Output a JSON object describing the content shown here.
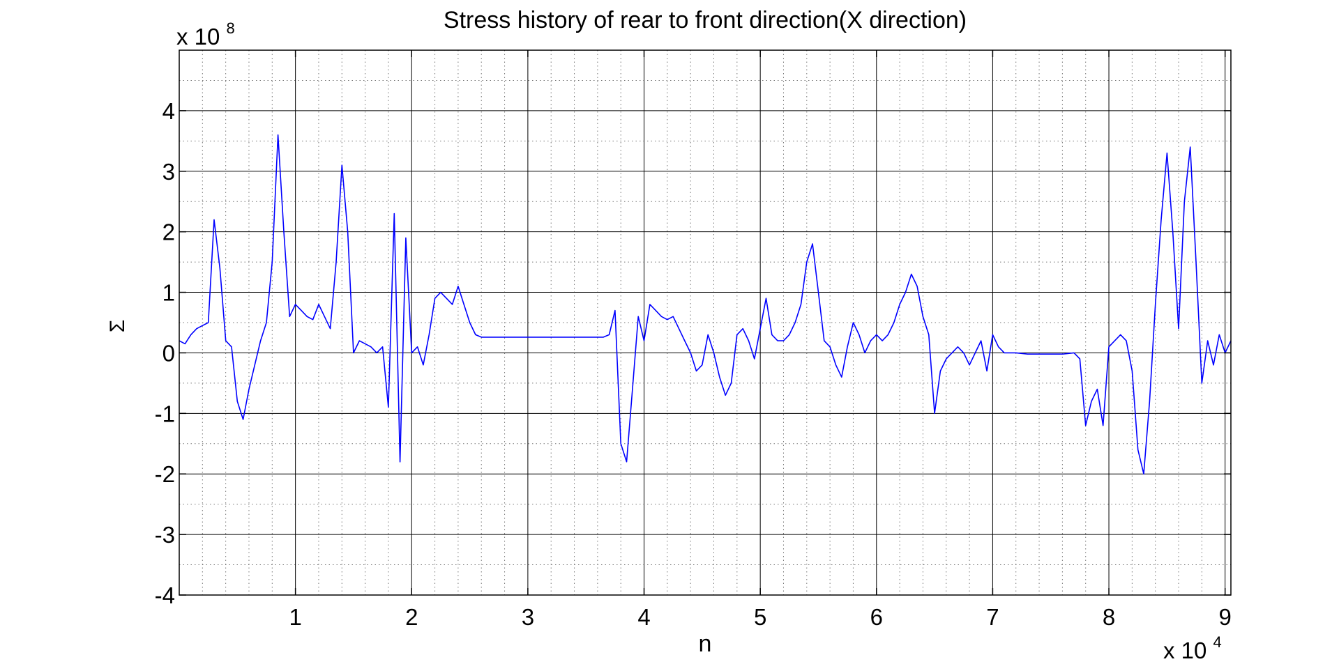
{
  "chart_data": {
    "type": "line",
    "title": "Stress history of rear to front direction(X direction)",
    "xlabel": "n",
    "ylabel": "Σ",
    "x_multiplier_base": "x 10",
    "x_multiplier_exp": "4",
    "y_multiplier_base": "x 10",
    "y_multiplier_exp": "8",
    "xlim": [
      0,
      9.05
    ],
    "ylim": [
      -4,
      5
    ],
    "grid": "major and minor",
    "x_ticks": [
      {
        "value": 1,
        "label": "1"
      },
      {
        "value": 2,
        "label": "2"
      },
      {
        "value": 3,
        "label": "3"
      },
      {
        "value": 4,
        "label": "4"
      },
      {
        "value": 5,
        "label": "5"
      },
      {
        "value": 6,
        "label": "6"
      },
      {
        "value": 7,
        "label": "7"
      },
      {
        "value": 8,
        "label": "8"
      },
      {
        "value": 9,
        "label": "9"
      }
    ],
    "y_ticks": [
      {
        "value": 4,
        "label": "4"
      },
      {
        "value": 3,
        "label": "3"
      },
      {
        "value": 2,
        "label": "2"
      },
      {
        "value": 1,
        "label": "1"
      },
      {
        "value": 0,
        "label": "0"
      },
      {
        "value": -1,
        "label": "-1"
      },
      {
        "value": -2,
        "label": "-2"
      },
      {
        "value": -3,
        "label": "-3"
      },
      {
        "value": -4,
        "label": "-4"
      }
    ],
    "series": [
      {
        "color": "#0000ff",
        "x": [
          0.0,
          0.05,
          0.1,
          0.15,
          0.2,
          0.25,
          0.3,
          0.35,
          0.4,
          0.45,
          0.5,
          0.55,
          0.6,
          0.65,
          0.7,
          0.75,
          0.8,
          0.85,
          0.9,
          0.95,
          1.0,
          1.05,
          1.1,
          1.15,
          1.2,
          1.25,
          1.3,
          1.35,
          1.4,
          1.45,
          1.5,
          1.55,
          1.6,
          1.65,
          1.7,
          1.75,
          1.8,
          1.85,
          1.9,
          1.95,
          2.0,
          2.05,
          2.1,
          2.15,
          2.2,
          2.25,
          2.3,
          2.35,
          2.4,
          2.45,
          2.5,
          2.55,
          2.6,
          2.7,
          2.8,
          2.9,
          3.0,
          3.1,
          3.2,
          3.3,
          3.4,
          3.5,
          3.6,
          3.65,
          3.7,
          3.75,
          3.8,
          3.85,
          3.9,
          3.95,
          4.0,
          4.05,
          4.1,
          4.15,
          4.2,
          4.25,
          4.3,
          4.35,
          4.4,
          4.45,
          4.5,
          4.55,
          4.6,
          4.65,
          4.7,
          4.75,
          4.8,
          4.85,
          4.9,
          4.95,
          5.0,
          5.05,
          5.1,
          5.15,
          5.2,
          5.25,
          5.3,
          5.35,
          5.4,
          5.45,
          5.5,
          5.55,
          5.6,
          5.65,
          5.7,
          5.75,
          5.8,
          5.85,
          5.9,
          5.95,
          6.0,
          6.05,
          6.1,
          6.15,
          6.2,
          6.25,
          6.3,
          6.35,
          6.4,
          6.45,
          6.5,
          6.55,
          6.6,
          6.65,
          6.7,
          6.75,
          6.8,
          6.85,
          6.9,
          6.95,
          7.0,
          7.05,
          7.1,
          7.15,
          7.2,
          7.3,
          7.4,
          7.5,
          7.6,
          7.7,
          7.75,
          7.8,
          7.85,
          7.9,
          7.95,
          8.0,
          8.05,
          8.1,
          8.15,
          8.2,
          8.25,
          8.3,
          8.35,
          8.4,
          8.45,
          8.5,
          8.55,
          8.6,
          8.65,
          8.7,
          8.75,
          8.8,
          8.85,
          8.9,
          8.95,
          9.0,
          9.05
        ],
        "y": [
          0.2,
          0.15,
          0.3,
          0.4,
          0.45,
          0.5,
          2.2,
          1.4,
          0.2,
          0.1,
          -0.8,
          -1.1,
          -0.6,
          -0.2,
          0.2,
          0.5,
          1.5,
          3.6,
          2.0,
          0.6,
          0.8,
          0.7,
          0.6,
          0.55,
          0.8,
          0.6,
          0.4,
          1.5,
          3.1,
          2.0,
          0.0,
          0.2,
          0.15,
          0.1,
          0.0,
          0.1,
          -0.9,
          2.3,
          -1.8,
          1.9,
          0.0,
          0.1,
          -0.2,
          0.3,
          0.9,
          1.0,
          0.9,
          0.8,
          1.1,
          0.8,
          0.5,
          0.3,
          0.26,
          0.26,
          0.26,
          0.26,
          0.26,
          0.26,
          0.26,
          0.26,
          0.26,
          0.26,
          0.26,
          0.26,
          0.3,
          0.7,
          -1.5,
          -1.8,
          -0.6,
          0.6,
          0.2,
          0.8,
          0.7,
          0.6,
          0.55,
          0.6,
          0.4,
          0.2,
          0.0,
          -0.3,
          -0.2,
          0.3,
          0.0,
          -0.4,
          -0.7,
          -0.5,
          0.3,
          0.4,
          0.2,
          -0.1,
          0.4,
          0.9,
          0.3,
          0.2,
          0.2,
          0.3,
          0.5,
          0.8,
          1.5,
          1.8,
          1.0,
          0.2,
          0.1,
          -0.2,
          -0.4,
          0.1,
          0.5,
          0.3,
          0.0,
          0.2,
          0.3,
          0.2,
          0.3,
          0.5,
          0.8,
          1.0,
          1.3,
          1.1,
          0.6,
          0.3,
          -1.0,
          -0.3,
          -0.1,
          0.0,
          0.1,
          0.0,
          -0.2,
          0.0,
          0.2,
          -0.3,
          0.3,
          0.1,
          0.0,
          0.0,
          0.0,
          -0.02,
          -0.02,
          -0.02,
          -0.02,
          0.0,
          -0.1,
          -1.2,
          -0.8,
          -0.6,
          -1.2,
          0.1,
          0.2,
          0.3,
          0.2,
          -0.3,
          -1.6,
          -2.0,
          -0.8,
          0.8,
          2.2,
          3.3,
          2.0,
          0.4,
          2.5,
          3.4,
          1.5,
          -0.5,
          0.2,
          -0.2,
          0.3,
          0.0,
          0.2
        ]
      }
    ]
  }
}
